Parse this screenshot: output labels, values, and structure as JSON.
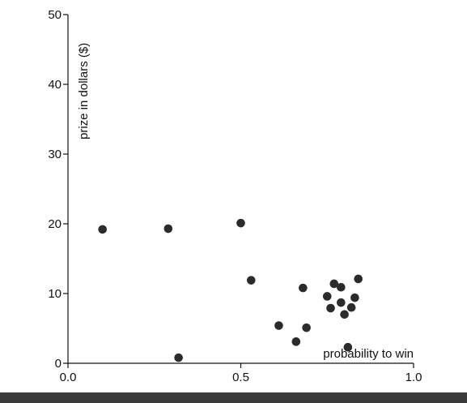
{
  "chart_data": {
    "type": "scatter",
    "title": "",
    "xlabel": "probability to win",
    "ylabel": "prize in dollars ($)",
    "xlim": [
      0.0,
      1.0
    ],
    "ylim": [
      0,
      50
    ],
    "x_ticks": [
      {
        "value": 0.0,
        "label": "0.0"
      },
      {
        "value": 0.5,
        "label": "0.5"
      },
      {
        "value": 1.0,
        "label": "1.0"
      }
    ],
    "y_ticks": [
      {
        "value": 0,
        "label": "0"
      },
      {
        "value": 10,
        "label": "10"
      },
      {
        "value": 20,
        "label": "20"
      },
      {
        "value": 30,
        "label": "30"
      },
      {
        "value": 40,
        "label": "40"
      },
      {
        "value": 50,
        "label": "50"
      }
    ],
    "grid": false,
    "points": [
      {
        "x": 0.1,
        "y": 19.2
      },
      {
        "x": 0.29,
        "y": 19.3
      },
      {
        "x": 0.32,
        "y": 0.8
      },
      {
        "x": 0.5,
        "y": 20.1
      },
      {
        "x": 0.53,
        "y": 11.9
      },
      {
        "x": 0.61,
        "y": 5.4
      },
      {
        "x": 0.66,
        "y": 3.1
      },
      {
        "x": 0.68,
        "y": 10.8
      },
      {
        "x": 0.69,
        "y": 5.1
      },
      {
        "x": 0.75,
        "y": 9.6
      },
      {
        "x": 0.76,
        "y": 7.9
      },
      {
        "x": 0.77,
        "y": 11.4
      },
      {
        "x": 0.79,
        "y": 10.9
      },
      {
        "x": 0.79,
        "y": 8.7
      },
      {
        "x": 0.8,
        "y": 7.0
      },
      {
        "x": 0.81,
        "y": 2.3
      },
      {
        "x": 0.82,
        "y": 8.0
      },
      {
        "x": 0.83,
        "y": 9.4
      },
      {
        "x": 0.84,
        "y": 12.1
      }
    ],
    "colors": {
      "point": "#2b2b2b",
      "axis": "#111111",
      "bottom_bar": "#3a3a3a"
    }
  }
}
